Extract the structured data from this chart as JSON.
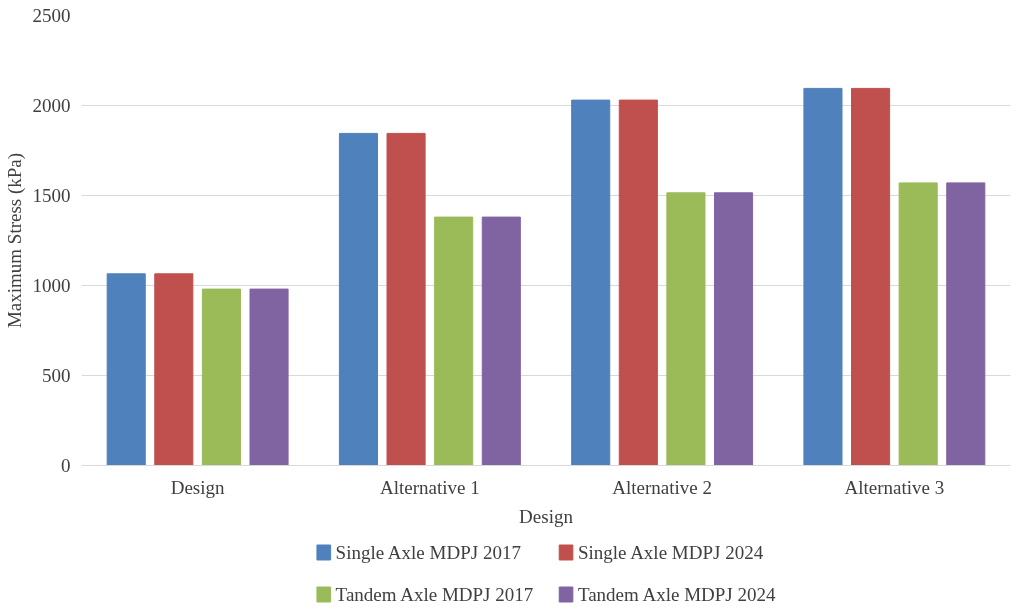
{
  "chart_data": {
    "type": "bar",
    "xlabel": "Design",
    "ylabel": "Maximum Stress (kPa)",
    "categories": [
      "Design",
      "Alternative 1",
      "Alternative 2",
      "Alternative 3"
    ],
    "series": [
      {
        "name": "Single Axle MDPJ 2017",
        "color": "#4f81bd",
        "values": [
          1065,
          1845,
          2030,
          2095
        ]
      },
      {
        "name": "Single Axle MDPJ 2024",
        "color": "#c0504d",
        "values": [
          1065,
          1845,
          2030,
          2095
        ]
      },
      {
        "name": "Tandem Axle MDPJ 2017",
        "color": "#9bbb59",
        "values": [
          980,
          1380,
          1515,
          1570
        ]
      },
      {
        "name": "Tandem Axle MDPJ 2024",
        "color": "#8064a2",
        "values": [
          980,
          1380,
          1515,
          1570
        ]
      }
    ],
    "ylim": [
      0,
      2500
    ],
    "yticks": [
      0,
      500,
      1000,
      1500,
      2000,
      2500
    ],
    "grid": "y",
    "legend": "bottom"
  }
}
